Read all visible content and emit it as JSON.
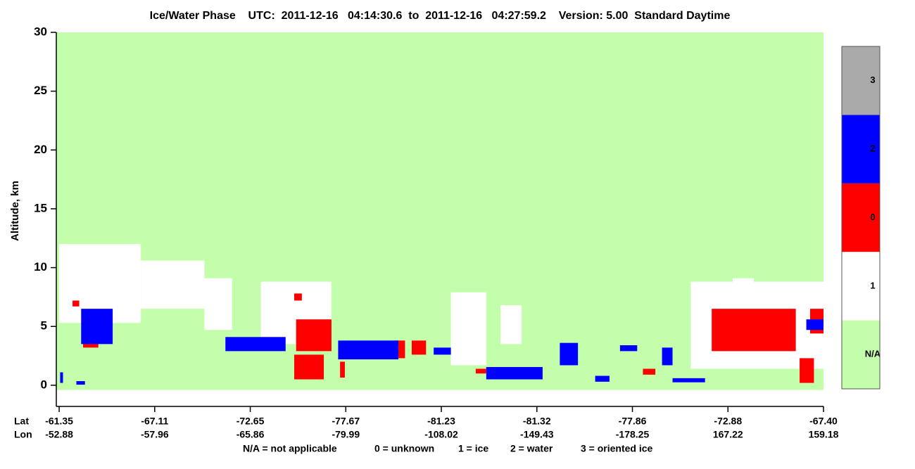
{
  "chart_data": {
    "type": "phase-curtain",
    "title": "Ice/Water Phase    UTC:  2011-12-16   04:14:30.6  to  2011-12-16   04:27:59.2    Version: 5.00  Standard Daytime",
    "y_label": "Altitude, km",
    "ylim": [
      -1.8,
      30
    ],
    "yticks": [
      0,
      5,
      10,
      15,
      20,
      25,
      30
    ],
    "xlim": [
      -0.03,
      8
    ],
    "xticks": [
      0,
      1,
      2,
      3,
      4,
      5,
      6,
      7,
      8
    ],
    "x_row_labels": [
      "Lat",
      "Lon"
    ],
    "lat": [
      "-61.35",
      "-67.11",
      "-72.65",
      "-77.67",
      "-81.23",
      "-81.32",
      "-77.86",
      "-72.88",
      "-67.40"
    ],
    "lon": [
      "-52.88",
      "-57.96",
      "-65.86",
      "-79.99",
      "-108.02",
      "-149.43",
      "-178.25",
      "167.22",
      "159.18"
    ],
    "legend_note": [
      "N/A = not applicable",
      "0 = unknown",
      "1 = ice",
      "2 = water",
      "3 = oriented ice"
    ],
    "series": [
      {
        "name": "N/A",
        "color": "#c3ffaa",
        "boxes": [
          {
            "x": [
              -0.03,
              8
            ],
            "alt": [
              -0.4,
              30
            ]
          }
        ]
      },
      {
        "name": "1",
        "color": "#ffffff",
        "boxes": [
          {
            "x": [
              0,
              0.855
            ],
            "alt": [
              5.3,
              12
            ]
          },
          {
            "x": [
              0.855,
              1.52
            ],
            "alt": [
              6.5,
              10.6
            ]
          },
          {
            "x": [
              1.52,
              1.81
            ],
            "alt": [
              4.7,
              9.1
            ]
          },
          {
            "x": [
              2.11,
              2.85
            ],
            "alt": [
              3.5,
              8.8
            ]
          },
          {
            "x": [
              4.1,
              4.47
            ],
            "alt": [
              1.7,
              7.9
            ]
          },
          {
            "x": [
              4.62,
              4.84
            ],
            "alt": [
              3.5,
              6.8
            ]
          },
          {
            "x": [
              6.61,
              8
            ],
            "alt": [
              1.4,
              8.8
            ]
          },
          {
            "x": [
              7.05,
              7.27
            ],
            "alt": [
              7.6,
              9.1
            ]
          }
        ]
      },
      {
        "name": "0",
        "color": "#ff0000",
        "boxes": [
          {
            "x": [
              0.14,
              0.21
            ],
            "alt": [
              6.7,
              7.2
            ]
          },
          {
            "x": [
              0.25,
              0.41
            ],
            "alt": [
              3.2,
              4.4
            ]
          },
          {
            "x": [
              2.46,
              2.54
            ],
            "alt": [
              7.2,
              7.8
            ]
          },
          {
            "x": [
              2.46,
              2.77
            ],
            "alt": [
              0.5,
              2.6
            ]
          },
          {
            "x": [
              2.48,
              2.85
            ],
            "alt": [
              2.9,
              5.6
            ]
          },
          {
            "x": [
              2.94,
              2.99
            ],
            "alt": [
              0.65,
              2.0
            ]
          },
          {
            "x": [
              3.51,
              3.62
            ],
            "alt": [
              2.3,
              3.8
            ]
          },
          {
            "x": [
              3.69,
              3.84
            ],
            "alt": [
              2.6,
              3.8
            ]
          },
          {
            "x": [
              4.36,
              4.47
            ],
            "alt": [
              1.0,
              1.4
            ]
          },
          {
            "x": [
              6.11,
              6.24
            ],
            "alt": [
              0.9,
              1.4
            ]
          },
          {
            "x": [
              6.83,
              7.71
            ],
            "alt": [
              2.9,
              6.5
            ]
          },
          {
            "x": [
              7.75,
              7.9
            ],
            "alt": [
              0.2,
              2.3
            ]
          },
          {
            "x": [
              7.86,
              8
            ],
            "alt": [
              4.4,
              6.5
            ]
          }
        ]
      },
      {
        "name": "2",
        "color": "#0000ff",
        "boxes": [
          {
            "x": [
              0.23,
              0.56
            ],
            "alt": [
              3.5,
              6.5
            ]
          },
          {
            "x": [
              1.74,
              2.37
            ],
            "alt": [
              2.9,
              4.1
            ]
          },
          {
            "x": [
              2.92,
              3.55
            ],
            "alt": [
              2.2,
              3.8
            ]
          },
          {
            "x": [
              3.92,
              4.1
            ],
            "alt": [
              2.6,
              3.2
            ]
          },
          {
            "x": [
              4.47,
              5.06
            ],
            "alt": [
              0.5,
              1.55
            ]
          },
          {
            "x": [
              5.24,
              5.43
            ],
            "alt": [
              1.7,
              3.6
            ]
          },
          {
            "x": [
              5.61,
              5.76
            ],
            "alt": [
              0.3,
              0.8
            ]
          },
          {
            "x": [
              5.87,
              6.05
            ],
            "alt": [
              2.9,
              3.4
            ]
          },
          {
            "x": [
              6.31,
              6.42
            ],
            "alt": [
              1.7,
              3.2
            ]
          },
          {
            "x": [
              6.42,
              6.76
            ],
            "alt": [
              0.25,
              0.6
            ]
          },
          {
            "x": [
              0.01,
              0.04
            ],
            "alt": [
              0.2,
              1.1
            ]
          },
          {
            "x": [
              0.18,
              0.27
            ],
            "alt": [
              0.05,
              0.35
            ]
          },
          {
            "x": [
              7.82,
              8
            ],
            "alt": [
              4.7,
              5.6
            ]
          }
        ]
      },
      {
        "name": "3",
        "color": "#aaaaaa",
        "boxes": []
      }
    ]
  }
}
